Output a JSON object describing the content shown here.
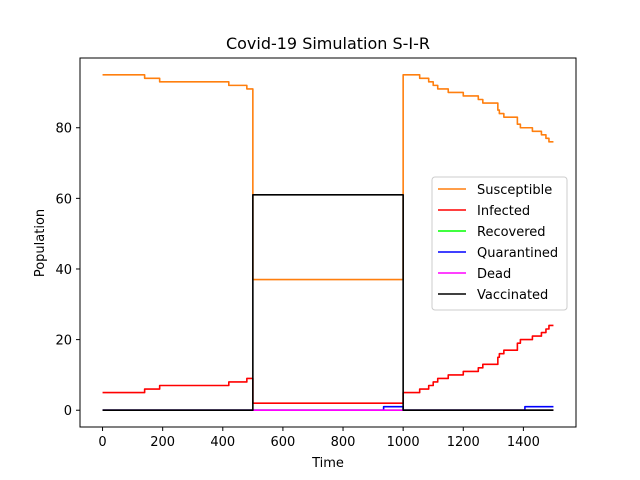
{
  "chart_data": {
    "type": "line",
    "title": "Covid-19 Simulation S-I-R",
    "xlabel": "Time",
    "ylabel": "Population",
    "xlim": [
      -75,
      1575
    ],
    "ylim": [
      -4.75,
      99.75
    ],
    "xticks": [
      0,
      200,
      400,
      600,
      800,
      1000,
      1200,
      1400
    ],
    "yticks": [
      0,
      20,
      40,
      60,
      80
    ],
    "grid": false,
    "legend": "center-right",
    "series": [
      {
        "name": "Susceptible",
        "color": "#ff7f0e",
        "points": [
          [
            0,
            95
          ],
          [
            140,
            95
          ],
          [
            140,
            94
          ],
          [
            190,
            94
          ],
          [
            190,
            93
          ],
          [
            420,
            93
          ],
          [
            420,
            92
          ],
          [
            480,
            92
          ],
          [
            480,
            91
          ],
          [
            500,
            91
          ],
          [
            500,
            37
          ],
          [
            1000,
            37
          ],
          [
            1000,
            95
          ],
          [
            1055,
            95
          ],
          [
            1055,
            94
          ],
          [
            1085,
            94
          ],
          [
            1085,
            93
          ],
          [
            1100,
            93
          ],
          [
            1100,
            92
          ],
          [
            1115,
            92
          ],
          [
            1115,
            91
          ],
          [
            1150,
            91
          ],
          [
            1150,
            90
          ],
          [
            1200,
            90
          ],
          [
            1200,
            89
          ],
          [
            1250,
            89
          ],
          [
            1250,
            88
          ],
          [
            1265,
            88
          ],
          [
            1265,
            87
          ],
          [
            1315,
            87
          ],
          [
            1315,
            85
          ],
          [
            1320,
            85
          ],
          [
            1320,
            84
          ],
          [
            1335,
            84
          ],
          [
            1335,
            83
          ],
          [
            1380,
            83
          ],
          [
            1380,
            81
          ],
          [
            1390,
            81
          ],
          [
            1390,
            80
          ],
          [
            1430,
            80
          ],
          [
            1430,
            79
          ],
          [
            1460,
            79
          ],
          [
            1460,
            78
          ],
          [
            1475,
            78
          ],
          [
            1475,
            77
          ],
          [
            1485,
            77
          ],
          [
            1485,
            76
          ],
          [
            1500,
            76
          ]
        ]
      },
      {
        "name": "Infected",
        "color": "#ff0000",
        "points": [
          [
            0,
            5
          ],
          [
            140,
            5
          ],
          [
            140,
            6
          ],
          [
            190,
            6
          ],
          [
            190,
            7
          ],
          [
            420,
            7
          ],
          [
            420,
            8
          ],
          [
            480,
            8
          ],
          [
            480,
            9
          ],
          [
            500,
            9
          ],
          [
            500,
            2
          ],
          [
            1000,
            2
          ],
          [
            1000,
            5
          ],
          [
            1055,
            5
          ],
          [
            1055,
            6
          ],
          [
            1085,
            6
          ],
          [
            1085,
            7
          ],
          [
            1100,
            7
          ],
          [
            1100,
            8
          ],
          [
            1115,
            8
          ],
          [
            1115,
            9
          ],
          [
            1150,
            9
          ],
          [
            1150,
            10
          ],
          [
            1200,
            10
          ],
          [
            1200,
            11
          ],
          [
            1250,
            11
          ],
          [
            1250,
            12
          ],
          [
            1265,
            12
          ],
          [
            1265,
            13
          ],
          [
            1315,
            13
          ],
          [
            1315,
            15
          ],
          [
            1320,
            15
          ],
          [
            1320,
            16
          ],
          [
            1335,
            16
          ],
          [
            1335,
            17
          ],
          [
            1380,
            17
          ],
          [
            1380,
            19
          ],
          [
            1390,
            19
          ],
          [
            1390,
            20
          ],
          [
            1430,
            20
          ],
          [
            1430,
            21
          ],
          [
            1460,
            21
          ],
          [
            1460,
            22
          ],
          [
            1475,
            22
          ],
          [
            1475,
            23
          ],
          [
            1485,
            23
          ],
          [
            1485,
            24
          ],
          [
            1500,
            24
          ]
        ]
      },
      {
        "name": "Recovered",
        "color": "#00ff00",
        "points": [
          [
            0,
            0
          ],
          [
            1500,
            0
          ]
        ]
      },
      {
        "name": "Quarantined",
        "color": "#0000ff",
        "points": [
          [
            0,
            0
          ],
          [
            935,
            0
          ],
          [
            935,
            1
          ],
          [
            1000,
            1
          ],
          [
            1000,
            0
          ],
          [
            1405,
            0
          ],
          [
            1405,
            1
          ],
          [
            1500,
            1
          ]
        ]
      },
      {
        "name": "Dead",
        "color": "#ff00ff",
        "points": [
          [
            0,
            0
          ],
          [
            1500,
            0
          ]
        ]
      },
      {
        "name": "Vaccinated",
        "color": "#000000",
        "points": [
          [
            0,
            0
          ],
          [
            500,
            0
          ],
          [
            500,
            61
          ],
          [
            1000,
            61
          ],
          [
            1000,
            0
          ],
          [
            1500,
            0
          ]
        ]
      }
    ]
  }
}
